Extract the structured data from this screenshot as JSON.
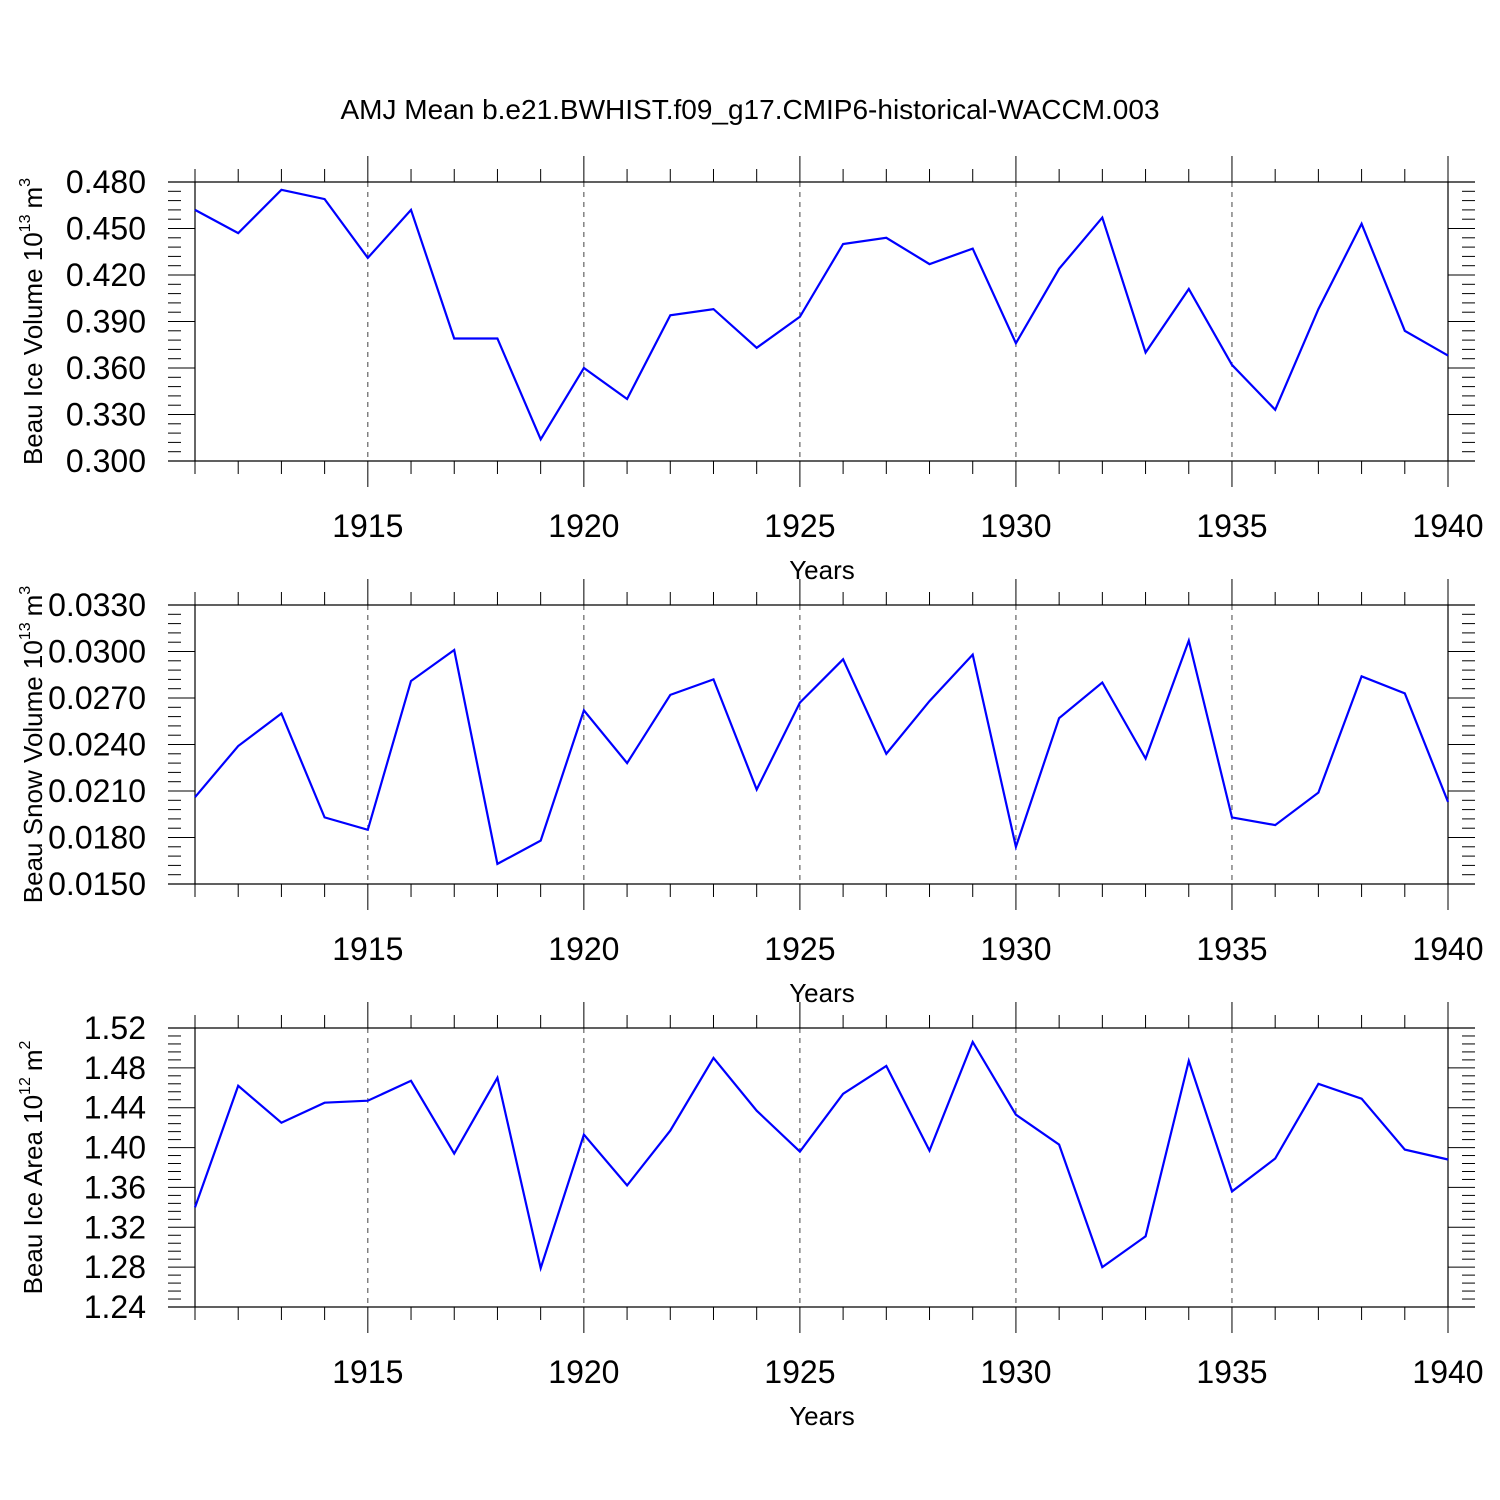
{
  "title": "AMJ Mean b.e21.BWHIST.f09_g17.CMIP6-historical-WACCM.003",
  "chart_data": [
    {
      "type": "line",
      "ylabel": {
        "main": "Beau Ice Volume 10",
        "exponent": "13",
        "unit": "m",
        "unit_exponent": "3"
      },
      "xlabel": "Years",
      "xlim": [
        1911,
        1940
      ],
      "ylim": [
        0.3,
        0.48
      ],
      "yticks": [
        "0.300",
        "0.330",
        "0.360",
        "0.390",
        "0.420",
        "0.450",
        "0.480"
      ],
      "xticks": [
        "1915",
        "1920",
        "1925",
        "1930",
        "1935",
        "1940"
      ],
      "x": [
        1911,
        1912,
        1913,
        1914,
        1915,
        1916,
        1917,
        1918,
        1919,
        1920,
        1921,
        1922,
        1923,
        1924,
        1925,
        1926,
        1927,
        1928,
        1929,
        1930,
        1931,
        1932,
        1933,
        1934,
        1935,
        1936,
        1937,
        1938,
        1939,
        1940
      ],
      "values": [
        0.462,
        0.447,
        0.475,
        0.469,
        0.431,
        0.462,
        0.379,
        0.379,
        0.314,
        0.36,
        0.34,
        0.394,
        0.398,
        0.373,
        0.393,
        0.44,
        0.444,
        0.427,
        0.437,
        0.376,
        0.424,
        0.457,
        0.37,
        0.411,
        0.362,
        0.333,
        0.398,
        0.453,
        0.384,
        0.368
      ],
      "color": "#0000ff"
    },
    {
      "type": "line",
      "ylabel": {
        "main": "Beau Snow Volume 10",
        "exponent": "13",
        "unit": "m",
        "unit_exponent": "3"
      },
      "xlabel": "Years",
      "xlim": [
        1911,
        1940
      ],
      "ylim": [
        0.015,
        0.033
      ],
      "yticks": [
        "0.0150",
        "0.0180",
        "0.0210",
        "0.0240",
        "0.0270",
        "0.0300",
        "0.0330"
      ],
      "xticks": [
        "1915",
        "1920",
        "1925",
        "1930",
        "1935",
        "1940"
      ],
      "x": [
        1911,
        1912,
        1913,
        1914,
        1915,
        1916,
        1917,
        1918,
        1919,
        1920,
        1921,
        1922,
        1923,
        1924,
        1925,
        1926,
        1927,
        1928,
        1929,
        1930,
        1931,
        1932,
        1933,
        1934,
        1935,
        1936,
        1937,
        1938,
        1939,
        1940
      ],
      "values": [
        0.0206,
        0.0239,
        0.026,
        0.0193,
        0.0185,
        0.0281,
        0.0301,
        0.0163,
        0.0178,
        0.0262,
        0.0228,
        0.0272,
        0.0282,
        0.0211,
        0.0267,
        0.0295,
        0.0234,
        0.0268,
        0.0298,
        0.0174,
        0.0257,
        0.028,
        0.0231,
        0.0307,
        0.0193,
        0.0188,
        0.0209,
        0.0284,
        0.0273,
        0.0203
      ],
      "color": "#0000ff"
    },
    {
      "type": "line",
      "ylabel": {
        "main": "Beau Ice Area 10",
        "exponent": "12",
        "unit": "m",
        "unit_exponent": "2"
      },
      "xlabel": "Years",
      "xlim": [
        1911,
        1940
      ],
      "ylim": [
        1.24,
        1.52
      ],
      "yticks": [
        "1.24",
        "1.28",
        "1.32",
        "1.36",
        "1.40",
        "1.44",
        "1.48",
        "1.52"
      ],
      "xticks": [
        "1915",
        "1920",
        "1925",
        "1930",
        "1935",
        "1940"
      ],
      "x": [
        1911,
        1912,
        1913,
        1914,
        1915,
        1916,
        1917,
        1918,
        1919,
        1920,
        1921,
        1922,
        1923,
        1924,
        1925,
        1926,
        1927,
        1928,
        1929,
        1930,
        1931,
        1932,
        1933,
        1934,
        1935,
        1936,
        1937,
        1938,
        1939,
        1940
      ],
      "values": [
        1.34,
        1.462,
        1.425,
        1.445,
        1.447,
        1.467,
        1.394,
        1.47,
        1.279,
        1.413,
        1.362,
        1.417,
        1.49,
        1.437,
        1.396,
        1.454,
        1.482,
        1.397,
        1.506,
        1.433,
        1.403,
        1.28,
        1.311,
        1.487,
        1.356,
        1.389,
        1.464,
        1.449,
        1.398,
        1.388
      ],
      "color": "#0000ff"
    }
  ]
}
